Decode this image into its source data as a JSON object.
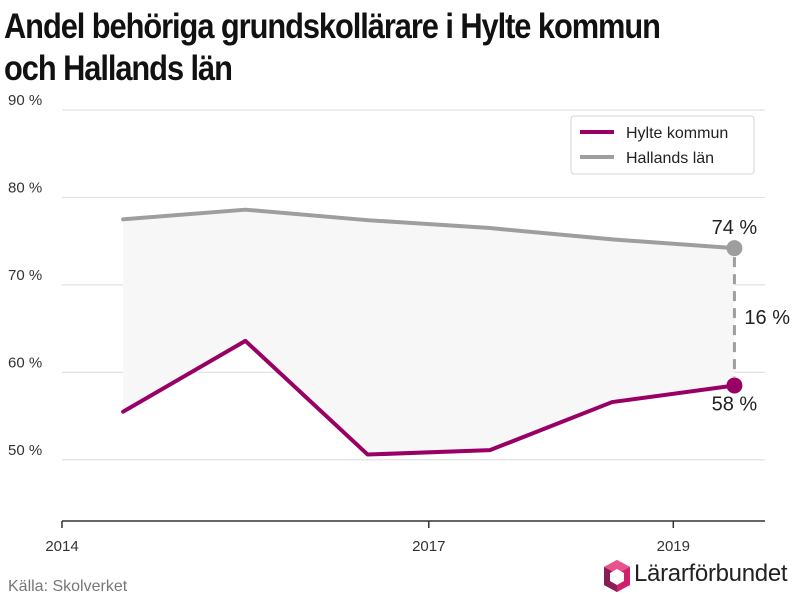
{
  "chart_data": {
    "type": "line",
    "title": "Andel behöriga grundskollärare i Hylte kommun och Hallands län",
    "x": [
      2014.5,
      2015.5,
      2016.5,
      2017.5,
      2018.5,
      2019.5
    ],
    "xticks": [
      "2014",
      "2017",
      "2019"
    ],
    "xtick_values": [
      2014,
      2017,
      2019
    ],
    "xlim": [
      2014,
      2019.75
    ],
    "ylim": [
      43,
      90
    ],
    "yticks": [
      50,
      60,
      70,
      80,
      90
    ],
    "ytick_labels": [
      "50 %",
      "60 %",
      "70 %",
      "80 %",
      "90 %"
    ],
    "series": [
      {
        "name": "Hylte kommun",
        "color": "#990066",
        "values": [
          55.5,
          63.6,
          50.6,
          51.1,
          56.6,
          58.5
        ]
      },
      {
        "name": "Hallands län",
        "color": "#9e9e9e",
        "values": [
          77.5,
          78.6,
          77.4,
          76.5,
          75.2,
          74.2
        ]
      }
    ],
    "annotations": {
      "hallands_end": "74 %",
      "hylte_end": "58 %",
      "gap": "16 %"
    },
    "legend_position": "top-right",
    "grid": true
  },
  "source": "Källa: Skolverket",
  "logo": {
    "text": "Lärarförbundet"
  }
}
